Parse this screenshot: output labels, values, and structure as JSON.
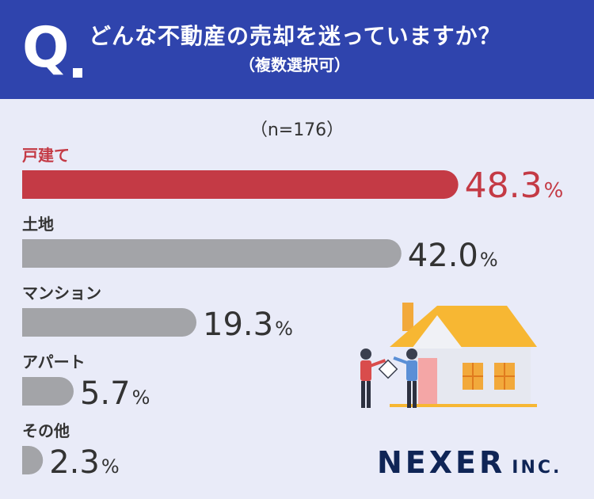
{
  "header": {
    "q_mark": "Q",
    "title": "どんな不動産の売却を迷っていますか？",
    "subtitle": "（複数選択可）"
  },
  "sample_size": "（n=176）",
  "colors": {
    "header_bg": "#2f44ad",
    "highlight": "#c43a45",
    "bar_gray": "#a3a4a8",
    "background": "#e9ebf8"
  },
  "chart_data": {
    "type": "bar",
    "orientation": "horizontal",
    "categories": [
      "戸建て",
      "土地",
      "マンション",
      "アパート",
      "その他"
    ],
    "values": [
      48.3,
      42.0,
      19.3,
      5.7,
      2.3
    ],
    "value_labels": [
      "48.3",
      "42.0",
      "19.3",
      "5.7",
      "2.3"
    ],
    "unit": "%",
    "highlight_index": 0,
    "xlim": [
      0,
      50
    ]
  },
  "illustration": {
    "name": "house-handshake-illustration"
  },
  "logo": {
    "main": "NEXER",
    "sub": "INC."
  }
}
